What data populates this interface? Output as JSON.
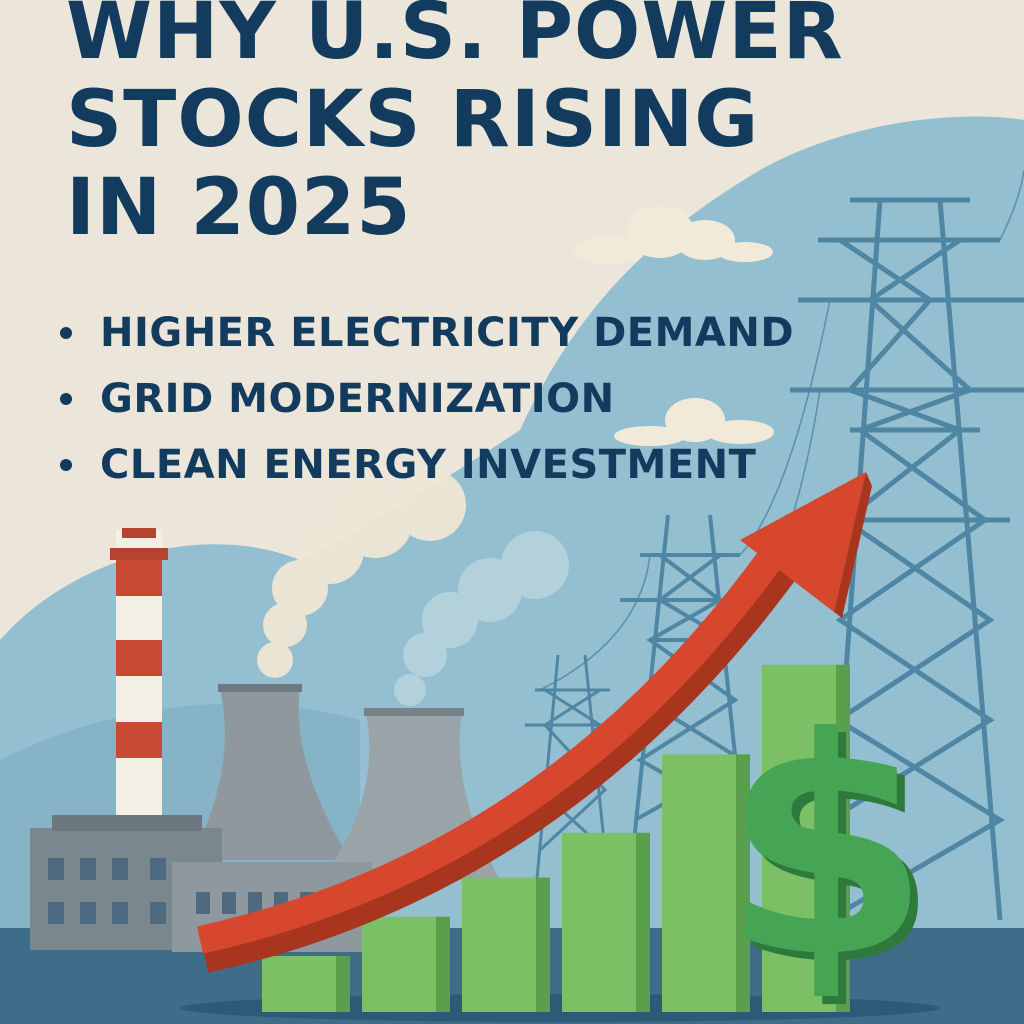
{
  "headline": {
    "line1": "WHY U.S. POWER",
    "line2": "STOCKS RISING",
    "line3": "IN 2025"
  },
  "bullets": [
    "HIGHER ELECTRICITY DEMAND",
    "GRID MODERNIZATION",
    "CLEAN ENERGY INVESTMENT"
  ],
  "icons": {
    "trend": "rising-arrow-icon",
    "money": "dollar-sign-icon",
    "plant": "power-plant-icon",
    "tower": "transmission-tower-icon"
  },
  "colors": {
    "background": "#ece6da",
    "sky": "#94bfd0",
    "navy_text": "#123b5e",
    "arrow_red": "#d6472e",
    "bar_green": "#7cc066",
    "dollar_green": "#3e9e4e",
    "tower_blue": "#4f86a4",
    "ground": "#3f6c88"
  },
  "chart_data": {
    "type": "bar",
    "categories": [
      "",
      "",
      "",
      "",
      "",
      ""
    ],
    "values": [
      1,
      1.7,
      2.4,
      3.2,
      4.6,
      6.2
    ],
    "trend": "rising",
    "title": "",
    "xlabel": "",
    "ylabel": ""
  }
}
